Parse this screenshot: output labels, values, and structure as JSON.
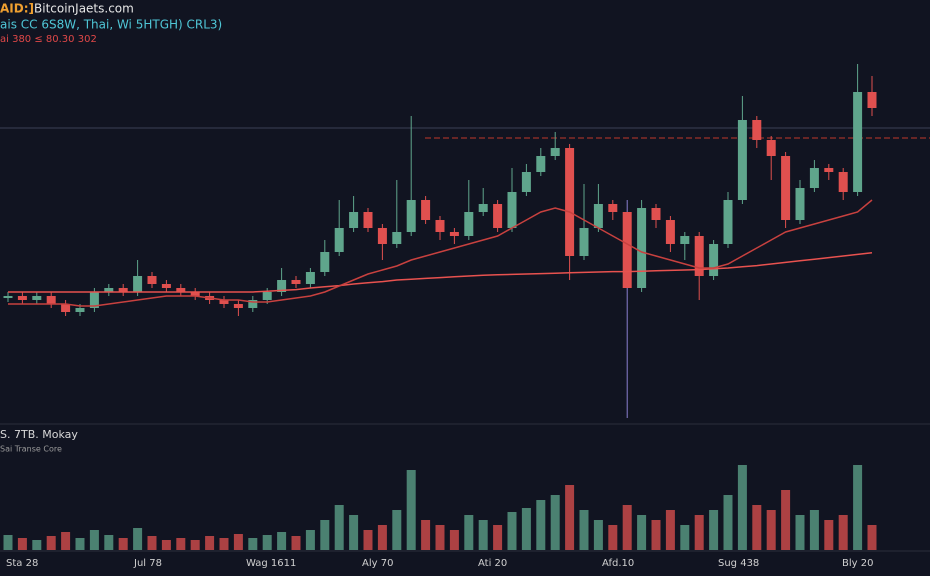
{
  "header": {
    "symbol": "AID:]",
    "site": "BitcoinJaets.com",
    "info": "ais CC 6S8W, Thai, Wi 5HTGH) CRL3)",
    "prices": "ai 380 ≤ 80.30 302"
  },
  "chart_data": {
    "type": "candlestick",
    "up_color": "#5fa58c",
    "down_color": "#e0504f",
    "ylim": [
      0,
      100
    ],
    "candles": [
      [
        30.5,
        32,
        29.5,
        31
      ],
      [
        31,
        32,
        29,
        30
      ],
      [
        30,
        32,
        29,
        31
      ],
      [
        31,
        32,
        28,
        29
      ],
      [
        29,
        30,
        26,
        27
      ],
      [
        27,
        29,
        26,
        28
      ],
      [
        28,
        33,
        27,
        32
      ],
      [
        32,
        34,
        31,
        33
      ],
      [
        33,
        34,
        31,
        32
      ],
      [
        32,
        40,
        31,
        36
      ],
      [
        36,
        37,
        33,
        34
      ],
      [
        34,
        35,
        32,
        33
      ],
      [
        33,
        34,
        31,
        32
      ],
      [
        32,
        33,
        30,
        31
      ],
      [
        31,
        32,
        29,
        30
      ],
      [
        30,
        31,
        28,
        29
      ],
      [
        29,
        30,
        26,
        28
      ],
      [
        28,
        31,
        27,
        30
      ],
      [
        30,
        33,
        29,
        32
      ],
      [
        32,
        38,
        31,
        35
      ],
      [
        35,
        36,
        33,
        34
      ],
      [
        34,
        38,
        33,
        37
      ],
      [
        37,
        45,
        36,
        42
      ],
      [
        42,
        55,
        41,
        48
      ],
      [
        48,
        56,
        47,
        52
      ],
      [
        52,
        53,
        47,
        48
      ],
      [
        48,
        49,
        40,
        44
      ],
      [
        44,
        60,
        43,
        47
      ],
      [
        47,
        76,
        46,
        55
      ],
      [
        55,
        56,
        49,
        50
      ],
      [
        50,
        51,
        45,
        47
      ],
      [
        47,
        48,
        44,
        46
      ],
      [
        46,
        60,
        45,
        52
      ],
      [
        52,
        58,
        51,
        54
      ],
      [
        54,
        55,
        47,
        48
      ],
      [
        48,
        63,
        47,
        57
      ],
      [
        57,
        64,
        56,
        62
      ],
      [
        62,
        68,
        61,
        66
      ],
      [
        66,
        72,
        65,
        68
      ],
      [
        68,
        69,
        35,
        41
      ],
      [
        41,
        59,
        40,
        48
      ],
      [
        48,
        59,
        47,
        54
      ],
      [
        54,
        55,
        50,
        52
      ],
      [
        52,
        55,
        0.5,
        33
      ],
      [
        33,
        55,
        32,
        53
      ],
      [
        53,
        54,
        48,
        50
      ],
      [
        50,
        51,
        42,
        44
      ],
      [
        44,
        47,
        40,
        46
      ],
      [
        46,
        47,
        30,
        36
      ],
      [
        36,
        45,
        35,
        44
      ],
      [
        44,
        57,
        43,
        55
      ],
      [
        55,
        81,
        54,
        75
      ],
      [
        75,
        76,
        68,
        70
      ],
      [
        70,
        71,
        60,
        66
      ],
      [
        66,
        67,
        48,
        50
      ],
      [
        50,
        60,
        49,
        58
      ],
      [
        58,
        65,
        57,
        63
      ],
      [
        63,
        64,
        60,
        62
      ],
      [
        62,
        63,
        55,
        57
      ],
      [
        57,
        89,
        56,
        82
      ],
      [
        82,
        86,
        76,
        78
      ]
    ],
    "lines": [
      {
        "color": "#e8524f",
        "values": [
          32,
          32,
          32,
          32,
          32,
          32,
          32,
          32,
          32,
          32,
          32,
          32,
          32,
          32,
          32,
          32,
          32,
          32,
          32.2,
          32.4,
          32.6,
          33,
          33.3,
          33.6,
          34,
          34.3,
          34.6,
          35,
          35.2,
          35.4,
          35.6,
          35.8,
          36,
          36.2,
          36.3,
          36.4,
          36.5,
          36.6,
          36.7,
          36.8,
          36.9,
          37,
          37.1,
          37.1,
          37.2,
          37.3,
          37.4,
          37.5,
          37.6,
          37.8,
          38,
          38.3,
          38.6,
          39,
          39.4,
          39.8,
          40.2,
          40.6,
          41,
          41.4,
          41.8
        ]
      },
      {
        "color": "#c8413f",
        "values": [
          29,
          29,
          29,
          29,
          29,
          28.5,
          28.5,
          29,
          29.5,
          30,
          30.5,
          31,
          31,
          31,
          30.5,
          30,
          30,
          29.5,
          29.5,
          30,
          30.5,
          31,
          32,
          33.5,
          35,
          36.5,
          37.5,
          38.5,
          40,
          41,
          42,
          43,
          44,
          45,
          46,
          48,
          50,
          52,
          53,
          52,
          50,
          48,
          46,
          44,
          42,
          41,
          40,
          39,
          38,
          38,
          39,
          41,
          43,
          45,
          47,
          48,
          49,
          50,
          51,
          52,
          55
        ]
      }
    ],
    "levels": [
      {
        "value": 73,
        "color": "#3a3f55",
        "dashed": false
      },
      {
        "value": 70.5,
        "color": "#c0392b",
        "dashed": true
      }
    ],
    "volume_label": "S. 7TB. Mokay",
    "volume_sublabel": "Sai Transe Core",
    "volume_ylim": [
      0,
      100
    ],
    "volume": [
      15,
      12,
      10,
      14,
      18,
      12,
      20,
      15,
      12,
      22,
      14,
      10,
      12,
      10,
      14,
      12,
      16,
      12,
      15,
      18,
      14,
      20,
      30,
      45,
      35,
      20,
      25,
      40,
      80,
      30,
      25,
      20,
      35,
      30,
      25,
      38,
      42,
      50,
      55,
      65,
      40,
      30,
      25,
      45,
      35,
      30,
      40,
      25,
      35,
      40,
      55,
      85,
      45,
      40,
      60,
      35,
      40,
      30,
      35,
      85,
      25
    ],
    "x_labels": [
      "Sta 28",
      "Jul 78",
      "Wag 1611",
      "Aly 70",
      "Ati 20",
      "Afd.10",
      "Sug 438",
      "Bly 20"
    ]
  }
}
